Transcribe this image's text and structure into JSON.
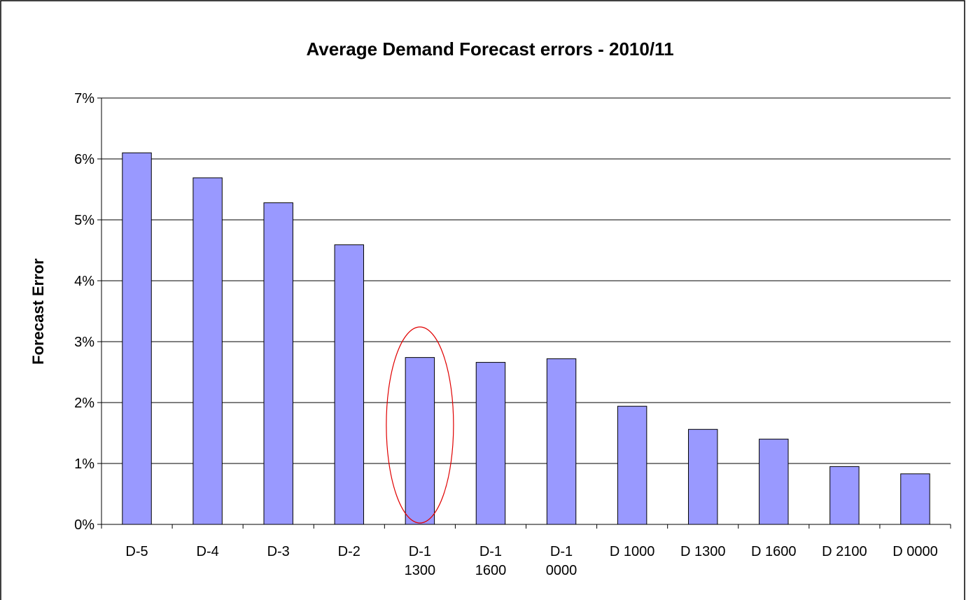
{
  "chart_data": {
    "type": "bar",
    "title": "Average Demand Forecast errors - 2010/11",
    "y_label": "Forecast Error",
    "categories": [
      "D-5",
      "D-4",
      "D-3",
      "D-2",
      "D-1\n1300",
      "D-1\n1600",
      "D-1\n0000",
      "D 1000",
      "D 1300",
      "D 1600",
      "D 2100",
      "D 0000"
    ],
    "values": [
      6.1,
      5.69,
      5.28,
      4.59,
      2.74,
      2.66,
      2.72,
      1.94,
      1.56,
      1.4,
      0.95,
      0.83
    ],
    "color": "#9999ff",
    "ylim": [
      0,
      7
    ],
    "yticks": [
      {
        "value": 0,
        "label": "0%"
      },
      {
        "value": 1,
        "label": "1%"
      },
      {
        "value": 2,
        "label": "2%"
      },
      {
        "value": 3,
        "label": "3%"
      },
      {
        "value": 4,
        "label": "4%"
      },
      {
        "value": 5,
        "label": "5%"
      },
      {
        "value": 6,
        "label": "6%"
      },
      {
        "value": 7,
        "label": "7%"
      }
    ],
    "grid": true
  }
}
